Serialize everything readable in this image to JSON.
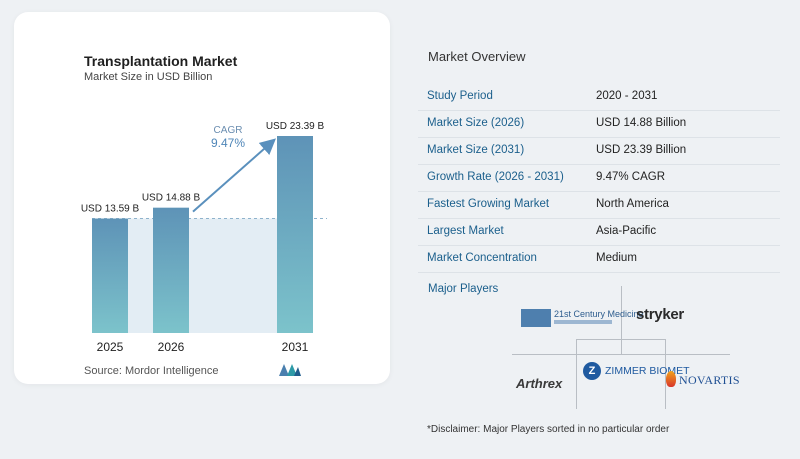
{
  "chart": {
    "title": "Transplantation Market",
    "subtitle": "Market Size in USD Billion",
    "source": "Source:  Mordor Intelligence",
    "cagr_label": "CAGR",
    "cagr_value": "9.47%"
  },
  "chart_data": {
    "type": "bar",
    "categories": [
      "2025",
      "2026",
      "2031"
    ],
    "values": [
      13.59,
      14.88,
      23.39
    ],
    "data_labels": [
      "USD 13.59 B",
      "USD 14.88 B",
      "USD 23.39 B"
    ],
    "title": "Transplantation Market",
    "subtitle": "Market Size in USD Billion",
    "xlabel": "",
    "ylabel": "",
    "ylim": [
      0,
      25
    ],
    "grid": false,
    "annotations": [
      "CAGR 9.47%"
    ],
    "colors": {
      "bar_top": "#5e93b7",
      "bar_bottom": "#7cc3cb",
      "reference_band": "#e3edf4",
      "arrow": "#5a90bd"
    }
  },
  "overview": {
    "title": "Market Overview",
    "rows": [
      {
        "label": "Study Period",
        "value": "2020 - 2031"
      },
      {
        "label": "Market Size (2026)",
        "value": "USD 14.88 Billion"
      },
      {
        "label": "Market Size (2031)",
        "value": "USD 23.39 Billion"
      },
      {
        "label": "Growth Rate (2026 - 2031)",
        "value": "9.47% CAGR"
      },
      {
        "label": "Fastest Growing Market",
        "value": "North America"
      },
      {
        "label": "Largest Market",
        "value": "Asia-Pacific"
      },
      {
        "label": "Market Concentration",
        "value": "Medium"
      }
    ]
  },
  "players": {
    "title": "Major Players",
    "logos": {
      "c21": "21st Century Medicine",
      "stryker": "stryker",
      "arthrex": "Arthrex",
      "zimmer_mark": "Z",
      "zimmer": "ZIMMER BIOMET",
      "novartis": "NOVARTIS"
    }
  },
  "disclaimer": "*Disclaimer: Major Players sorted in no particular order"
}
